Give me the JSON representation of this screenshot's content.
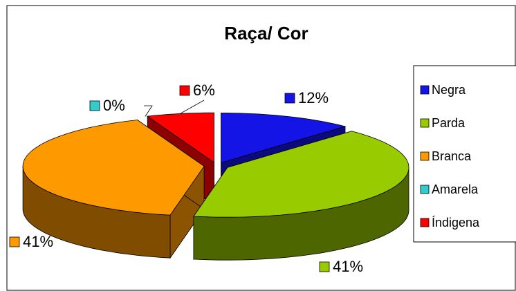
{
  "chart_data": {
    "type": "pie3d",
    "title": "Raça/ Cor",
    "categories": [
      "Negra",
      "Parda",
      "Branca",
      "Amarela",
      "Índigena"
    ],
    "values": [
      12,
      41,
      41,
      0,
      6
    ],
    "value_labels": [
      "12%",
      "41%",
      "41%",
      "0%",
      "6%"
    ],
    "colors": [
      "#1414e6",
      "#99cc00",
      "#ff9900",
      "#33cccc",
      "#ff0000"
    ],
    "legend": "right"
  }
}
